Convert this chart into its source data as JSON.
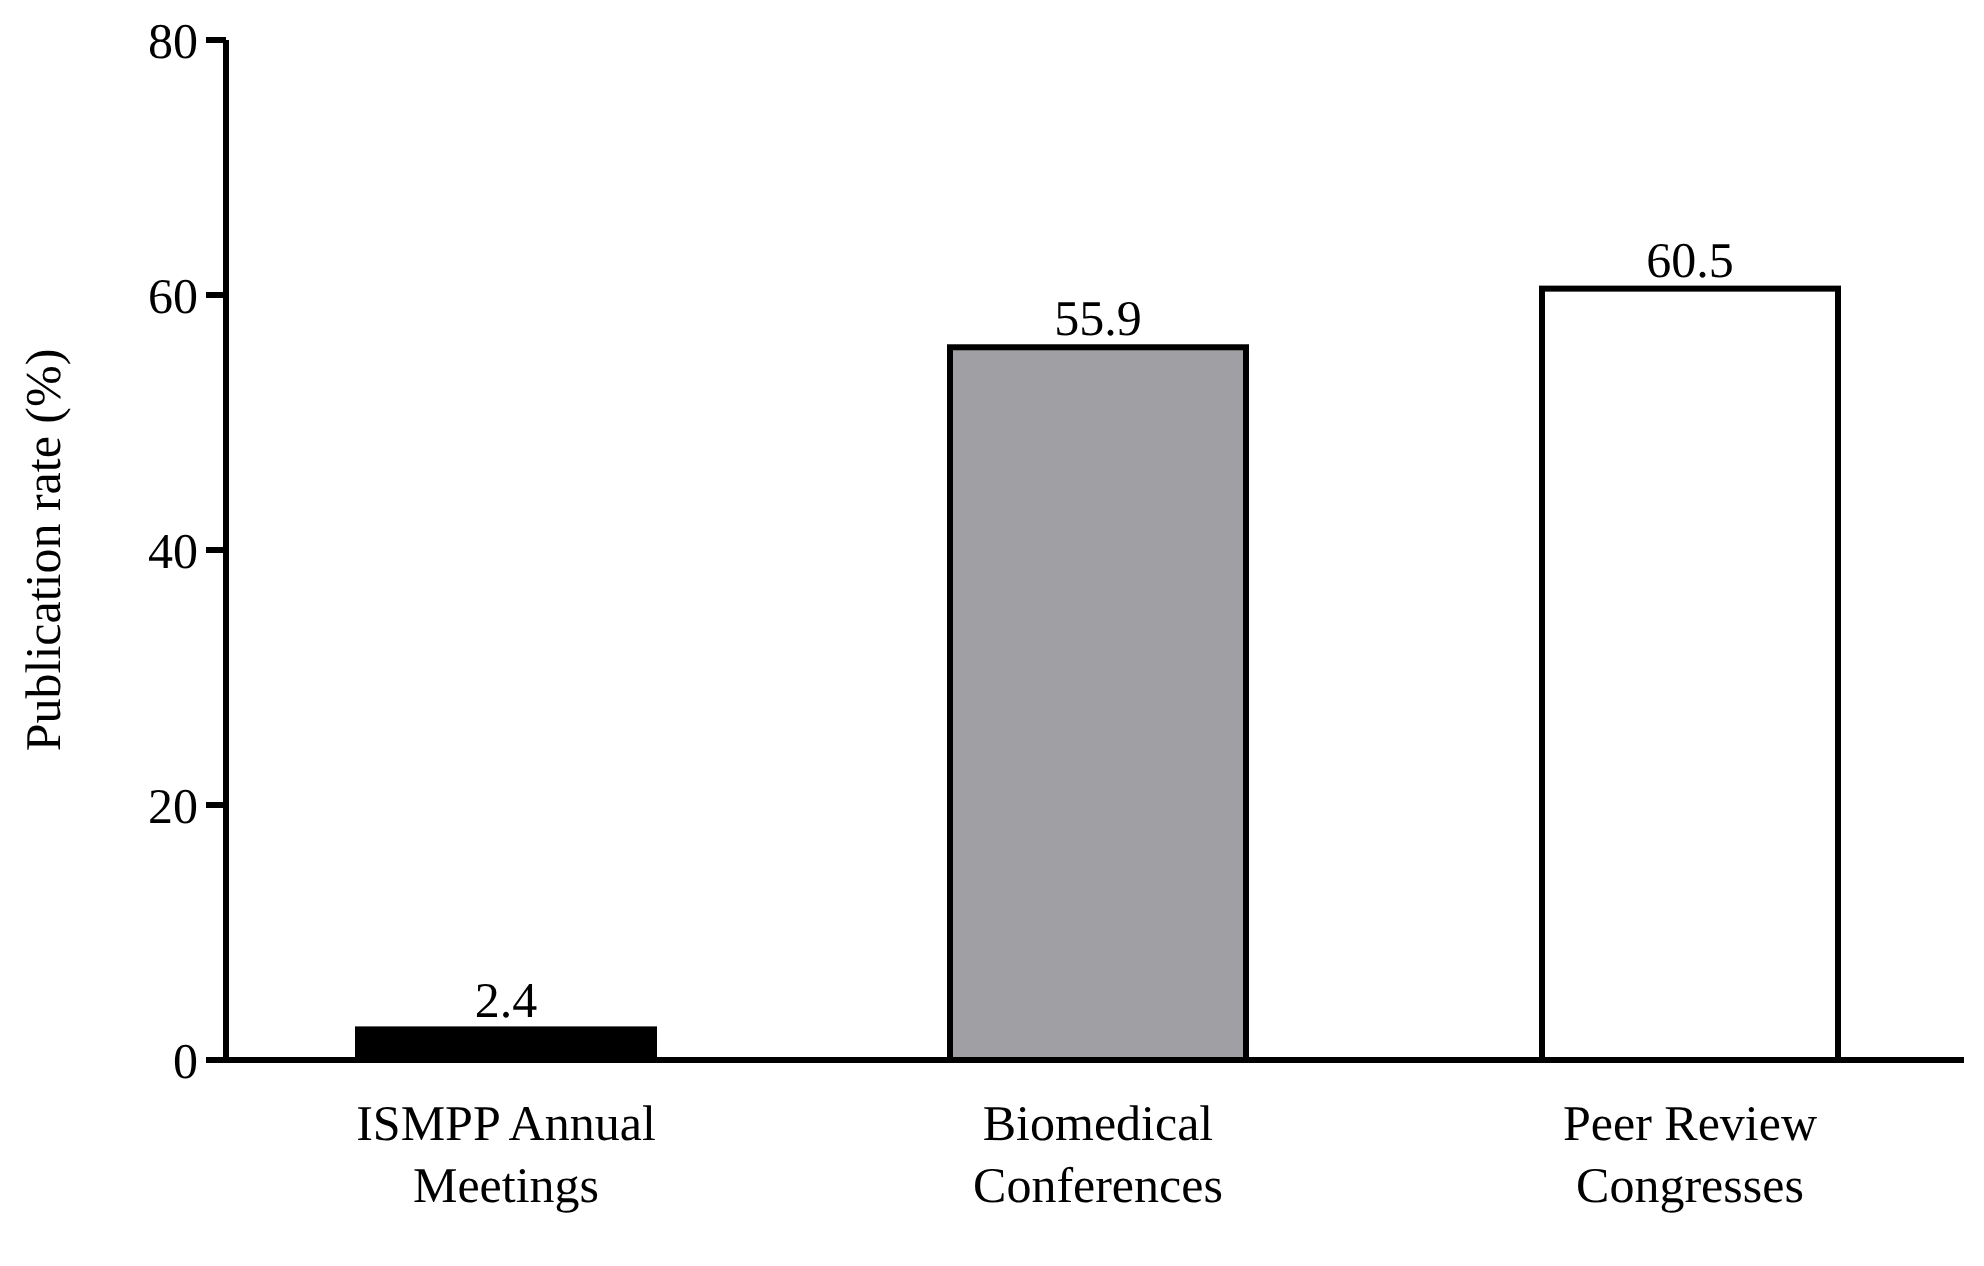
{
  "chart_data": {
    "type": "bar",
    "ylabel": "Publication rate (%)",
    "categories": [
      "ISMPP Annual Meetings",
      "Biomedical Conferences",
      "Peer Review Congresses"
    ],
    "values": [
      2.4,
      55.9,
      60.5
    ],
    "colors": [
      "#000000",
      "#a0a0a4",
      "#ffffff"
    ],
    "ylim": [
      0,
      80
    ],
    "yticks": [
      0,
      20,
      40,
      60,
      80
    ],
    "data_labels": true
  }
}
